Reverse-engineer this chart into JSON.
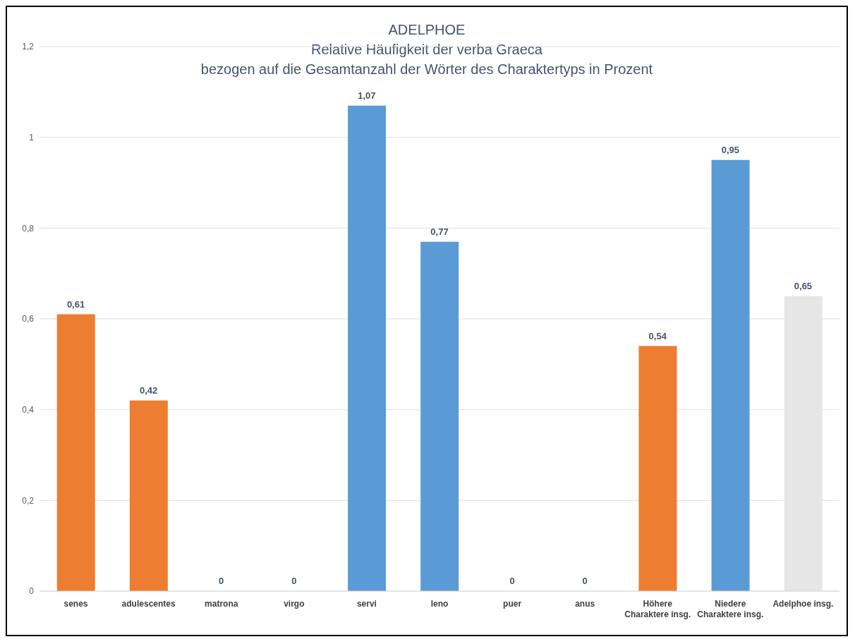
{
  "chart_data": {
    "type": "bar",
    "title": "ADELPHOE",
    "subtitle": "Relative Häufigkeit der verba Graeca\nbezogen auf die Gesamtanzahl der Wörter des Charaktertyps in Prozent",
    "categories": [
      "senes",
      "adulescentes",
      "matrona",
      "virgo",
      "servi",
      "leno",
      "puer",
      "anus",
      "Höhere Charaktere insg.",
      "Niedere Charaktere insg.",
      "Adelphoe insg."
    ],
    "values": [
      0.61,
      0.42,
      0,
      0,
      1.07,
      0.77,
      0,
      0,
      0.54,
      0.95,
      0.65
    ],
    "colors": [
      "#ed7d31",
      "#ed7d31",
      "#ed7d31",
      "#ed7d31",
      "#5b9bd5",
      "#5b9bd5",
      "#ed7d31",
      "#ed7d31",
      "#ed7d31",
      "#5b9bd5",
      "#e7e6e6"
    ],
    "value_labels": [
      "0,61",
      "0,42",
      "0",
      "0",
      "1,07",
      "0,77",
      "0",
      "0",
      "0,54",
      "0,95",
      "0,65"
    ],
    "ylim": [
      0,
      1.2
    ],
    "yticks": [
      0,
      {
        "value": 0.2,
        "label": "0,2"
      },
      {
        "value": 0.4,
        "label": "0,4"
      },
      {
        "value": 0.6,
        "label": "0,6"
      },
      {
        "value": 0.8,
        "label": "0,8"
      },
      1,
      {
        "value": 1.2,
        "label": "1,2"
      }
    ],
    "grid": "y"
  }
}
